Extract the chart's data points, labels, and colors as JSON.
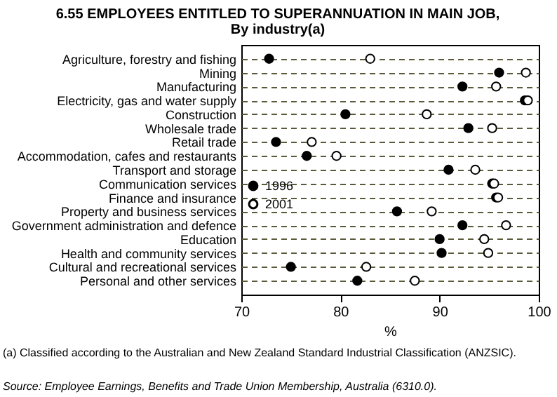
{
  "chart_data": {
    "type": "scatter",
    "title": "6.55   EMPLOYEES ENTITLED TO SUPERANNUATION IN MAIN JOB,",
    "subtitle": "By industry(a)",
    "xlabel": "%",
    "orientation": "horizontal",
    "categories": [
      "Agriculture, forestry and fishing",
      "Mining",
      "Manufacturing",
      "Electricity, gas and water supply",
      "Construction",
      "Wholesale trade",
      "Retail trade",
      "Accommodation, cafes and restaurants",
      "Transport and storage",
      "Communication services",
      "Finance and insurance",
      "Property and business services",
      "Government administration and defence",
      "Education",
      "Health and community services",
      "Cultural and recreational services",
      "Personal and other services"
    ],
    "series": [
      {
        "name": "1996",
        "color": "#000000",
        "values": [
          72.8,
          96.0,
          92.3,
          98.6,
          80.5,
          92.9,
          73.5,
          76.6,
          90.9,
          95.3,
          95.7,
          85.7,
          92.3,
          90.0,
          90.2,
          75.0,
          81.7
        ]
      },
      {
        "name": "2001",
        "color": "#ffffff",
        "values": [
          83.0,
          98.7,
          95.7,
          98.9,
          88.7,
          95.3,
          77.1,
          79.6,
          93.6,
          95.5,
          95.9,
          89.2,
          96.7,
          94.5,
          94.9,
          82.6,
          87.5
        ]
      }
    ],
    "xlim": [
      70,
      100
    ],
    "xticks": [
      70,
      80,
      90,
      100
    ],
    "grid": "y",
    "legend": "left",
    "marker": "circle",
    "annotations": [
      "(a) Classified according to the Australian and New Zealand Standard Industrial Classification (ANZSIC).",
      "Source: Employee Earnings, Benefits and Trade Union Membership, Australia (6310.0)."
    ]
  }
}
